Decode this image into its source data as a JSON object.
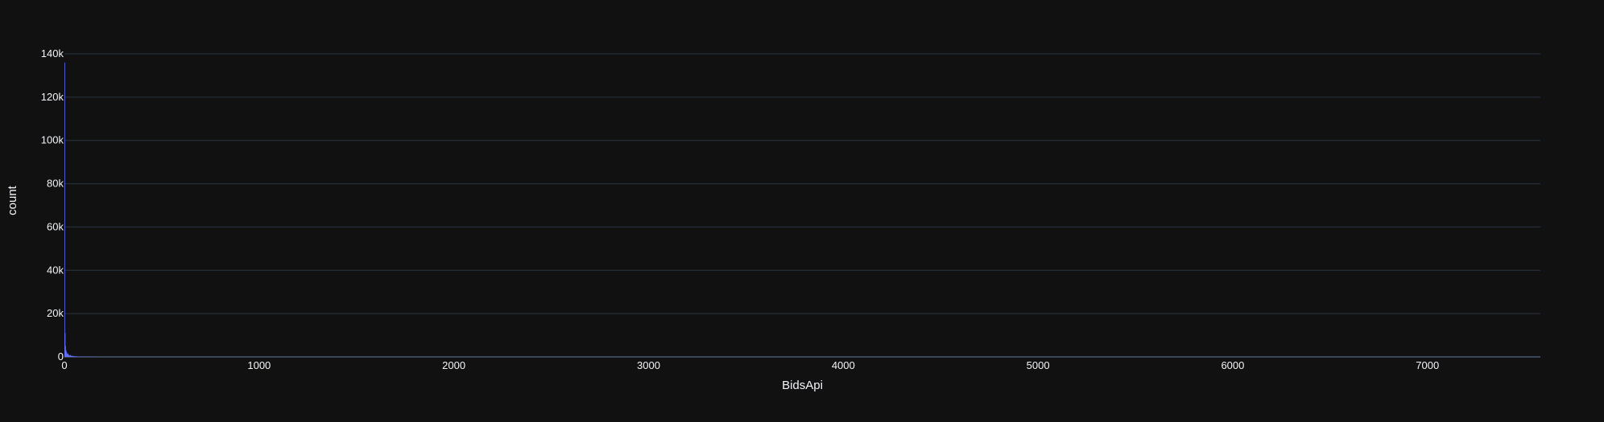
{
  "chart_data": {
    "type": "bar",
    "subtype": "histogram",
    "xlabel": "BidsApi",
    "ylabel": "count",
    "xlim": [
      0,
      7580
    ],
    "ylim": [
      0,
      140000
    ],
    "x_ticks": [
      0,
      1000,
      2000,
      3000,
      4000,
      5000,
      6000,
      7000
    ],
    "x_tick_labels": [
      "0",
      "1000",
      "2000",
      "3000",
      "4000",
      "5000",
      "6000",
      "7000"
    ],
    "y_ticks": [
      0,
      20000,
      40000,
      60000,
      80000,
      100000,
      120000,
      140000
    ],
    "y_tick_labels": [
      "0",
      "20k",
      "40k",
      "60k",
      "80k",
      "100k",
      "120k",
      "140k"
    ],
    "grid": true,
    "bar_color": "#636efa",
    "background": "#111111",
    "bins": [
      {
        "x0": 0,
        "x1": 2,
        "count": 136000
      },
      {
        "x0": 2,
        "x1": 4,
        "count": 11000
      },
      {
        "x0": 4,
        "x1": 6,
        "count": 5000
      },
      {
        "x0": 6,
        "x1": 8,
        "count": 3200
      },
      {
        "x0": 8,
        "x1": 10,
        "count": 2600
      },
      {
        "x0": 10,
        "x1": 12,
        "count": 2000
      },
      {
        "x0": 12,
        "x1": 14,
        "count": 1600
      },
      {
        "x0": 14,
        "x1": 16,
        "count": 1300
      },
      {
        "x0": 16,
        "x1": 18,
        "count": 1100
      },
      {
        "x0": 18,
        "x1": 20,
        "count": 1600
      },
      {
        "x0": 20,
        "x1": 22,
        "count": 900
      },
      {
        "x0": 22,
        "x1": 24,
        "count": 800
      },
      {
        "x0": 24,
        "x1": 26,
        "count": 700
      },
      {
        "x0": 26,
        "x1": 28,
        "count": 650
      },
      {
        "x0": 28,
        "x1": 30,
        "count": 600
      },
      {
        "x0": 30,
        "x1": 32,
        "count": 900
      },
      {
        "x0": 32,
        "x1": 34,
        "count": 500
      },
      {
        "x0": 34,
        "x1": 36,
        "count": 450
      },
      {
        "x0": 36,
        "x1": 38,
        "count": 420
      },
      {
        "x0": 38,
        "x1": 40,
        "count": 400
      },
      {
        "x0": 40,
        "x1": 42,
        "count": 600
      },
      {
        "x0": 42,
        "x1": 44,
        "count": 350
      },
      {
        "x0": 44,
        "x1": 46,
        "count": 330
      },
      {
        "x0": 46,
        "x1": 48,
        "count": 300
      },
      {
        "x0": 48,
        "x1": 50,
        "count": 280
      },
      {
        "x0": 50,
        "x1": 52,
        "count": 400
      },
      {
        "x0": 52,
        "x1": 56,
        "count": 250
      },
      {
        "x0": 56,
        "x1": 60,
        "count": 230
      },
      {
        "x0": 60,
        "x1": 64,
        "count": 300
      },
      {
        "x0": 64,
        "x1": 70,
        "count": 200
      },
      {
        "x0": 70,
        "x1": 76,
        "count": 180
      },
      {
        "x0": 76,
        "x1": 84,
        "count": 160
      },
      {
        "x0": 84,
        "x1": 92,
        "count": 140
      },
      {
        "x0": 92,
        "x1": 100,
        "count": 150
      },
      {
        "x0": 100,
        "x1": 110,
        "count": 120
      },
      {
        "x0": 110,
        "x1": 122,
        "count": 100
      },
      {
        "x0": 122,
        "x1": 136,
        "count": 90
      },
      {
        "x0": 136,
        "x1": 150,
        "count": 80
      },
      {
        "x0": 150,
        "x1": 170,
        "count": 70
      }
    ]
  }
}
